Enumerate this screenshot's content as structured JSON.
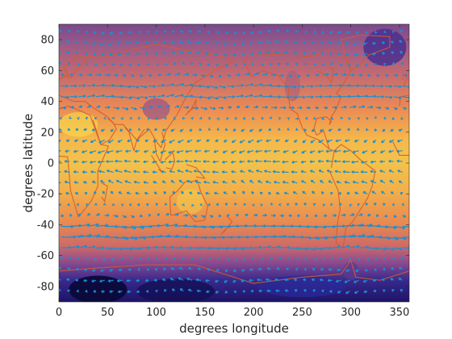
{
  "chart_data": {
    "type": "heatmap",
    "title": "",
    "xlabel": "degrees longitude",
    "ylabel": "degrees latitude",
    "xlim": [
      0,
      360
    ],
    "ylim": [
      -90,
      90
    ],
    "xticks": [
      0,
      50,
      100,
      150,
      200,
      250,
      300,
      350
    ],
    "yticks": [
      -80,
      -60,
      -40,
      -20,
      0,
      20,
      40,
      60,
      80
    ],
    "grid": false,
    "legend": "none",
    "layers": [
      {
        "kind": "scalar-field",
        "colormap": "plasma-like",
        "low_color": "#0d0887",
        "high_color": "#f0f921",
        "description_of_pattern": "warm (yellow) near equator, purple toward poles, darkest over Antarctica and Greenland"
      },
      {
        "kind": "vector-field",
        "color": "#1f77b4",
        "pattern": "easterly trade winds between about -30 and 30 latitude, westerlies between 30 and 60 latitude both hemispheres"
      },
      {
        "kind": "coastline-overlay",
        "color": "#d9582b"
      }
    ]
  },
  "colors": {
    "arrow": "#1a8fd0",
    "coast": "#d65a2e",
    "axis": "#262626"
  }
}
